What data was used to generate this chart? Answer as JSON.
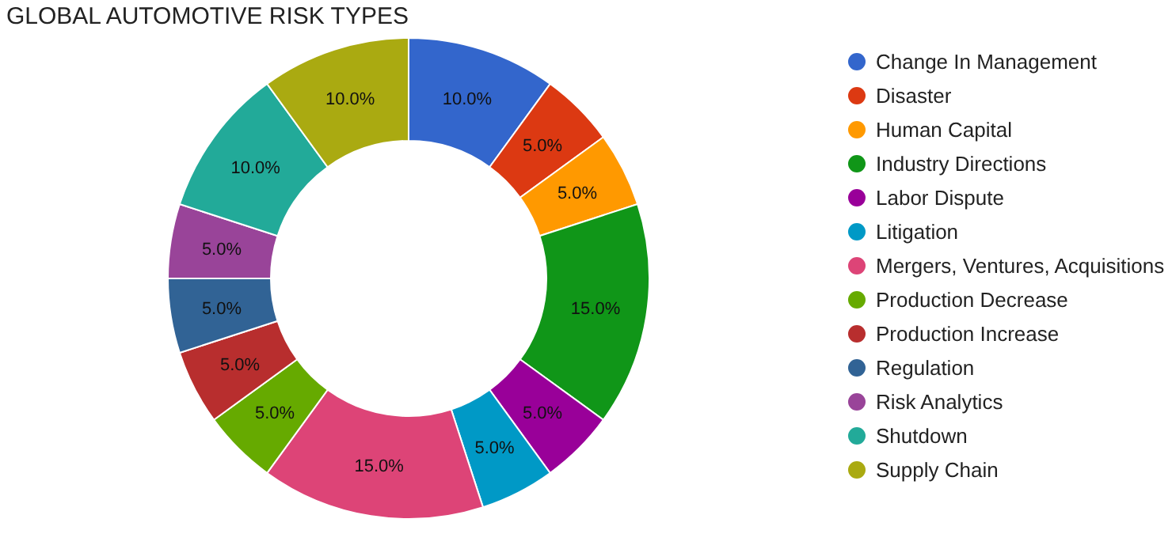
{
  "chart_data": {
    "type": "donut",
    "title": "GLOBAL AUTOMOTIVE RISK TYPES",
    "categories": [
      "Change In Management",
      "Disaster",
      "Human Capital",
      "Industry Directions",
      "Labor Dispute",
      "Litigation",
      "Mergers, Ventures, Acquisitions",
      "Production Decrease",
      "Production Increase",
      "Regulation",
      "Risk Analytics",
      "Shutdown",
      "Supply Chain"
    ],
    "values": [
      10,
      5,
      5,
      15,
      5,
      5,
      15,
      5,
      5,
      5,
      5,
      10,
      10
    ],
    "value_labels": [
      "10.0%",
      "5.0%",
      "5.0%",
      "15.0%",
      "5.0%",
      "5.0%",
      "15.0%",
      "5.0%",
      "5.0%",
      "5.0%",
      "5.0%",
      "10.0%",
      "10.0%"
    ],
    "colors": [
      "#3366cc",
      "#dc3912",
      "#ff9900",
      "#109618",
      "#990099",
      "#0099c6",
      "#dd4477",
      "#66aa00",
      "#b82e2e",
      "#316395",
      "#994499",
      "#22aa99",
      "#aaaa11"
    ],
    "legend": "right"
  }
}
